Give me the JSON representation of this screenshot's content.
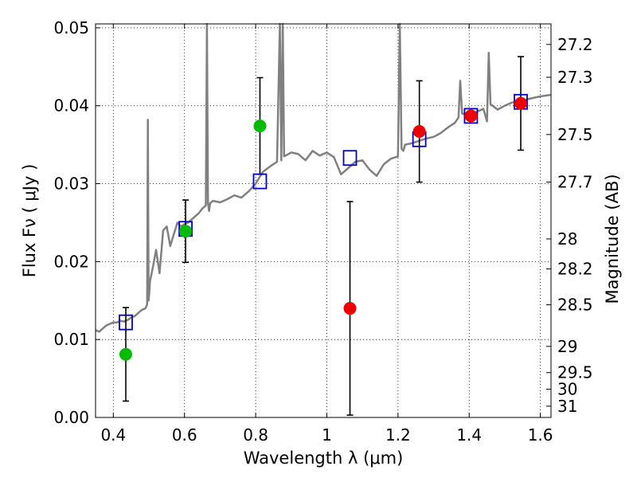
{
  "chart_data": {
    "type": "scatter",
    "title": "",
    "xlabel": "Wavelength  λ (μm)",
    "ylabel": "Flux  Fν  ( μJy )",
    "y2label": "Magnitude (AB)",
    "xlim": [
      0.35,
      1.63
    ],
    "ylim": [
      0.0,
      0.0505
    ],
    "grid": true,
    "x_ticks": [
      {
        "value": 0.4,
        "label": "0.4"
      },
      {
        "value": 0.6,
        "label": "0.6"
      },
      {
        "value": 0.8,
        "label": "0.8"
      },
      {
        "value": 1.0,
        "label": "1"
      },
      {
        "value": 1.2,
        "label": "1.2"
      },
      {
        "value": 1.4,
        "label": "1.4"
      },
      {
        "value": 1.6,
        "label": "1.6"
      }
    ],
    "y_ticks": [
      {
        "value": 0.0,
        "label": "0.00"
      },
      {
        "value": 0.01,
        "label": "0.01"
      },
      {
        "value": 0.02,
        "label": "0.02"
      },
      {
        "value": 0.03,
        "label": "0.03"
      },
      {
        "value": 0.04,
        "label": "0.04"
      },
      {
        "value": 0.05,
        "label": "0.05"
      }
    ],
    "mag_ticks": [
      "27.2",
      "27.3",
      "27.5",
      "27.7",
      "28",
      "28.2",
      "28.5",
      "29",
      "29.5",
      "30",
      "31"
    ],
    "colors": {
      "model": "#808080",
      "blue_squares": "#0000cc",
      "green": "#00bb00",
      "red": "#ee0000",
      "errorbar": "#000000"
    },
    "model_spectrum": {
      "x": [
        0.35,
        0.36,
        0.37,
        0.38,
        0.39,
        0.4,
        0.41,
        0.42,
        0.43,
        0.44,
        0.45,
        0.46,
        0.47,
        0.48,
        0.49,
        0.495,
        0.497,
        0.499,
        0.501,
        0.503,
        0.51,
        0.52,
        0.53,
        0.54,
        0.55,
        0.56,
        0.57,
        0.58,
        0.59,
        0.6,
        0.61,
        0.62,
        0.63,
        0.64,
        0.65,
        0.66,
        0.663,
        0.666,
        0.669,
        0.672,
        0.68,
        0.7,
        0.72,
        0.74,
        0.76,
        0.78,
        0.8,
        0.82,
        0.84,
        0.86,
        0.868,
        0.872,
        0.876,
        0.88,
        0.9,
        0.92,
        0.94,
        0.96,
        0.98,
        1.0,
        1.02,
        1.04,
        1.06,
        1.08,
        1.1,
        1.12,
        1.14,
        1.16,
        1.18,
        1.2,
        1.205,
        1.21,
        1.215,
        1.22,
        1.24,
        1.26,
        1.28,
        1.3,
        1.32,
        1.34,
        1.36,
        1.37,
        1.375,
        1.38,
        1.4,
        1.42,
        1.44,
        1.45,
        1.455,
        1.46,
        1.48,
        1.5,
        1.52,
        1.54,
        1.56,
        1.58,
        1.6,
        1.63
      ],
      "y": [
        0.0112,
        0.011,
        0.0114,
        0.0118,
        0.012,
        0.0122,
        0.0122,
        0.0124,
        0.0123,
        0.0125,
        0.0128,
        0.013,
        0.0134,
        0.0138,
        0.014,
        0.0145,
        0.0382,
        0.015,
        0.016,
        0.0175,
        0.019,
        0.0215,
        0.0185,
        0.024,
        0.0245,
        0.022,
        0.0235,
        0.025,
        0.0245,
        0.0248,
        0.025,
        0.0254,
        0.0258,
        0.0262,
        0.0268,
        0.0272,
        0.0505,
        0.0275,
        0.0265,
        0.0275,
        0.0278,
        0.0276,
        0.028,
        0.0285,
        0.0282,
        0.029,
        0.03,
        0.0315,
        0.0322,
        0.0328,
        0.0505,
        0.033,
        0.0505,
        0.0335,
        0.034,
        0.0338,
        0.033,
        0.0342,
        0.0336,
        0.034,
        0.0334,
        0.0312,
        0.032,
        0.0328,
        0.033,
        0.0318,
        0.031,
        0.0325,
        0.0332,
        0.0335,
        0.0505,
        0.0345,
        0.0342,
        0.035,
        0.0352,
        0.0355,
        0.0358,
        0.036,
        0.0365,
        0.0372,
        0.0378,
        0.0385,
        0.0432,
        0.039,
        0.0388,
        0.0392,
        0.0396,
        0.038,
        0.0468,
        0.0402,
        0.0395,
        0.04,
        0.0404,
        0.0406,
        0.0408,
        0.041,
        0.0412,
        0.0414
      ]
    },
    "series": [
      {
        "marker": "square",
        "points": [
          {
            "x": 0.435,
            "y": 0.0122
          },
          {
            "x": 0.603,
            "y": 0.0242
          },
          {
            "x": 0.812,
            "y": 0.0303
          },
          {
            "x": 1.065,
            "y": 0.0333
          },
          {
            "x": 1.26,
            "y": 0.0357
          },
          {
            "x": 1.405,
            "y": 0.0387
          },
          {
            "x": 1.545,
            "y": 0.0405
          }
        ]
      },
      {
        "marker": "circle-green",
        "points": [
          {
            "x": 0.435,
            "y": 0.0081,
            "err": 0.006
          },
          {
            "x": 0.603,
            "y": 0.0239,
            "err": 0.004
          },
          {
            "x": 0.812,
            "y": 0.0374,
            "err": 0.0062
          }
        ]
      },
      {
        "marker": "circle-red",
        "points": [
          {
            "x": 1.065,
            "y": 0.014,
            "err": 0.0137
          },
          {
            "x": 1.26,
            "y": 0.0367,
            "err": 0.0065
          },
          {
            "x": 1.405,
            "y": 0.0387
          },
          {
            "x": 1.545,
            "y": 0.0403,
            "err": 0.006
          }
        ]
      }
    ]
  }
}
